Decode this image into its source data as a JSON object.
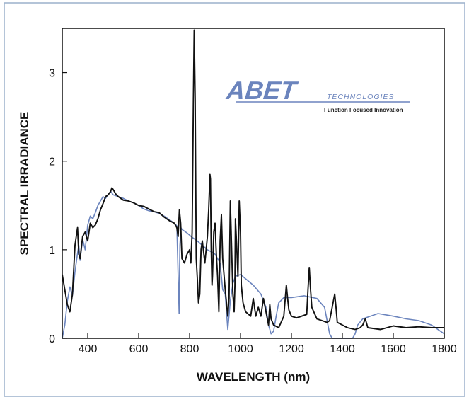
{
  "logo": {
    "brand": "ABET",
    "suffix": "TECHNOLOGIES",
    "tagline": "Function Focused Innovation"
  },
  "colors": {
    "frame_border": "#9cb1cc",
    "solar_series": "#6b84bd",
    "lamp_series": "#111111",
    "logo": "#6b84bd",
    "axis": "#111111"
  },
  "chart_data": {
    "type": "line",
    "title": "",
    "xlabel": "WAVELENGTH (nm)",
    "ylabel": "SPECTRAL IRRADIANCE",
    "xlim": [
      300,
      1800
    ],
    "ylim": [
      0,
      3.5
    ],
    "xticks": [
      400,
      600,
      800,
      1000,
      1200,
      1400,
      1600,
      1800
    ],
    "yticks": [
      0,
      1,
      2,
      3
    ],
    "grid": false,
    "legend": "none",
    "series": [
      {
        "color": "#6b84bd",
        "x": [
          300,
          310,
          320,
          330,
          340,
          350,
          360,
          365,
          370,
          380,
          390,
          400,
          410,
          420,
          430,
          440,
          450,
          460,
          470,
          480,
          490,
          500,
          520,
          540,
          560,
          580,
          600,
          620,
          640,
          660,
          680,
          700,
          720,
          740,
          750,
          759,
          762,
          766,
          770,
          790,
          810,
          830,
          850,
          870,
          890,
          900,
          920,
          930,
          940,
          950,
          960,
          970,
          980,
          1000,
          1050,
          1080,
          1100,
          1110,
          1120,
          1130,
          1140,
          1150,
          1170,
          1200,
          1250,
          1300,
          1330,
          1340,
          1350,
          1360,
          1380,
          1400,
          1420,
          1440,
          1450,
          1460,
          1480,
          1500,
          1520,
          1540,
          1560,
          1600,
          1650,
          1700,
          1750,
          1800
        ],
        "y": [
          0.0,
          0.15,
          0.42,
          0.58,
          0.48,
          0.75,
          0.96,
          1.05,
          0.88,
          1.12,
          1.0,
          1.28,
          1.38,
          1.35,
          1.42,
          1.5,
          1.55,
          1.6,
          1.58,
          1.62,
          1.66,
          1.62,
          1.6,
          1.58,
          1.55,
          1.53,
          1.5,
          1.46,
          1.44,
          1.43,
          1.41,
          1.38,
          1.34,
          1.3,
          1.27,
          0.28,
          1.05,
          1.25,
          1.23,
          1.19,
          1.14,
          1.1,
          1.05,
          1.0,
          0.97,
          0.95,
          0.85,
          0.55,
          0.5,
          0.1,
          0.42,
          0.62,
          0.7,
          0.72,
          0.6,
          0.5,
          0.35,
          0.15,
          0.05,
          0.08,
          0.25,
          0.4,
          0.46,
          0.46,
          0.48,
          0.45,
          0.35,
          0.2,
          0.05,
          0.0,
          0.0,
          0.0,
          0.0,
          0.0,
          0.05,
          0.15,
          0.22,
          0.24,
          0.26,
          0.28,
          0.27,
          0.25,
          0.22,
          0.2,
          0.15,
          0.05
        ]
      },
      {
        "color": "#111111",
        "x": [
          300,
          310,
          320,
          330,
          340,
          350,
          360,
          365,
          370,
          380,
          390,
          400,
          410,
          420,
          430,
          440,
          450,
          460,
          470,
          480,
          490,
          495,
          500,
          510,
          520,
          540,
          560,
          580,
          600,
          620,
          640,
          660,
          680,
          700,
          720,
          740,
          750,
          755,
          760,
          765,
          770,
          780,
          790,
          800,
          805,
          810,
          815,
          818,
          822,
          826,
          830,
          835,
          840,
          845,
          850,
          860,
          870,
          875,
          880,
          882,
          885,
          888,
          890,
          895,
          900,
          905,
          910,
          915,
          920,
          925,
          930,
          940,
          950,
          955,
          960,
          970,
          975,
          978,
          980,
          985,
          990,
          995,
          1000,
          1003,
          1010,
          1020,
          1040,
          1050,
          1060,
          1070,
          1080,
          1090,
          1100,
          1110,
          1115,
          1120,
          1130,
          1150,
          1170,
          1180,
          1185,
          1190,
          1200,
          1220,
          1240,
          1260,
          1265,
          1270,
          1275,
          1280,
          1300,
          1320,
          1340,
          1350,
          1360,
          1370,
          1375,
          1380,
          1400,
          1420,
          1450,
          1470,
          1480,
          1490,
          1500,
          1550,
          1600,
          1650,
          1700,
          1750,
          1800
        ],
        "y": [
          0.72,
          0.55,
          0.38,
          0.3,
          0.5,
          1.05,
          1.25,
          0.95,
          0.9,
          1.15,
          1.2,
          1.1,
          1.3,
          1.25,
          1.28,
          1.35,
          1.45,
          1.52,
          1.6,
          1.62,
          1.66,
          1.7,
          1.68,
          1.63,
          1.6,
          1.56,
          1.55,
          1.53,
          1.5,
          1.49,
          1.46,
          1.43,
          1.42,
          1.37,
          1.33,
          1.3,
          1.25,
          1.15,
          1.45,
          1.3,
          0.9,
          0.85,
          0.95,
          1.0,
          0.85,
          1.2,
          2.7,
          3.48,
          2.7,
          0.9,
          0.7,
          0.4,
          0.5,
          1.0,
          1.1,
          0.85,
          1.15,
          1.45,
          1.85,
          1.8,
          1.0,
          0.6,
          0.7,
          1.2,
          1.3,
          0.95,
          0.7,
          0.3,
          1.1,
          1.4,
          0.9,
          0.55,
          0.25,
          0.45,
          1.55,
          0.5,
          0.3,
          0.6,
          1.35,
          1.05,
          0.7,
          1.55,
          1.2,
          0.6,
          0.4,
          0.3,
          0.25,
          0.45,
          0.25,
          0.35,
          0.25,
          0.45,
          0.3,
          0.15,
          0.38,
          0.22,
          0.15,
          0.12,
          0.25,
          0.6,
          0.45,
          0.32,
          0.25,
          0.23,
          0.25,
          0.27,
          0.55,
          0.8,
          0.55,
          0.35,
          0.22,
          0.2,
          0.18,
          0.2,
          0.35,
          0.5,
          0.35,
          0.18,
          0.15,
          0.12,
          0.1,
          0.12,
          0.15,
          0.22,
          0.12,
          0.1,
          0.14,
          0.12,
          0.13,
          0.12,
          0.12
        ]
      }
    ]
  }
}
